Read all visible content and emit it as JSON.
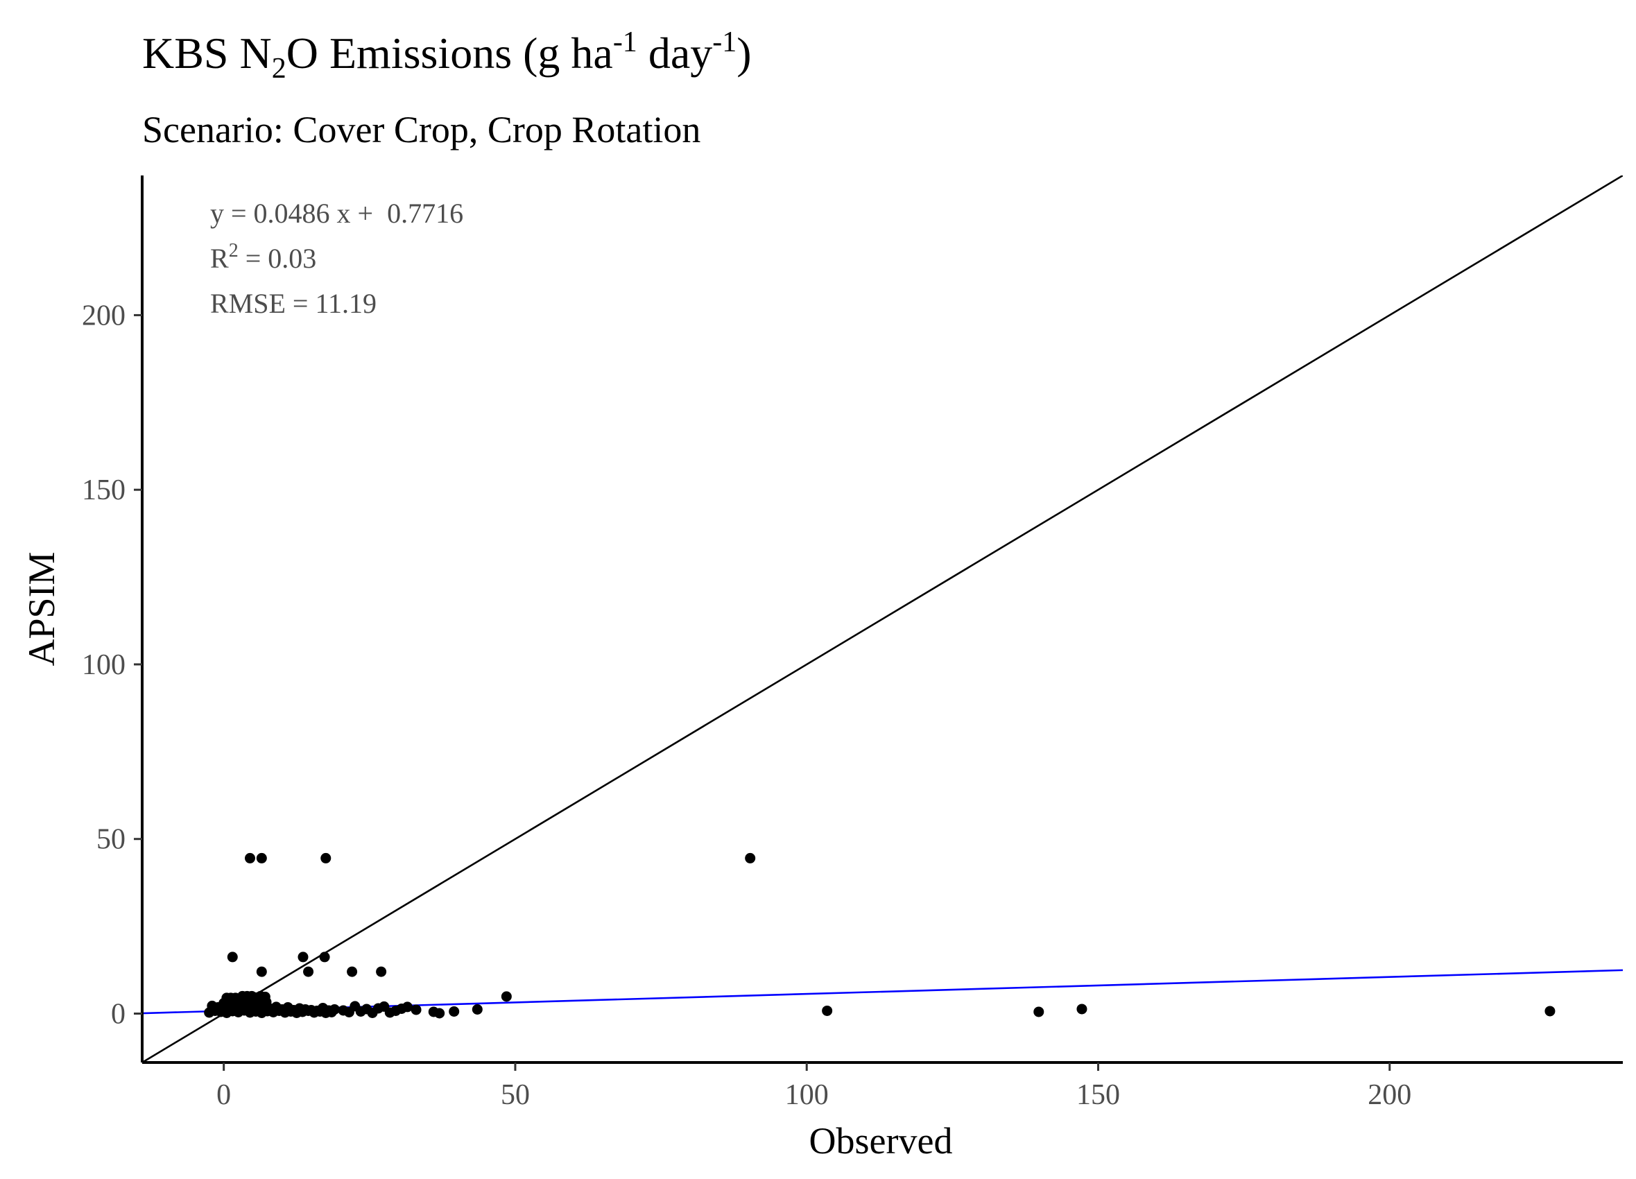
{
  "chart_data": {
    "type": "scatter",
    "title": {
      "text": "KBS N2O Emissions (g ha-1 day-1)",
      "parts": [
        {
          "text": "KBS N"
        },
        {
          "text": "2",
          "style": "sub"
        },
        {
          "text": "O Emissions (g ha"
        },
        {
          "text": "-1",
          "style": "sup"
        },
        {
          "text": " day"
        },
        {
          "text": "-1",
          "style": "sup"
        },
        {
          "text": ")"
        }
      ]
    },
    "subtitle": "Scenario: Cover Crop, Crop Rotation",
    "xlabel": "Observed",
    "ylabel": "APSIM",
    "xlim": [
      -14,
      240
    ],
    "ylim": [
      -14,
      240
    ],
    "x_ticks": [
      0,
      50,
      100,
      150,
      200
    ],
    "y_ticks": [
      0,
      50,
      100,
      150,
      200
    ],
    "grid": false,
    "annotations": {
      "equation": "y = 0.0486 x +  0.7716",
      "r2_base": "R",
      "r2_exp": "2",
      "r2_rest": " = 0.03",
      "rmse": "RMSE = 11.19"
    },
    "lines": [
      {
        "kind": "one-to-one",
        "slope": 1,
        "intercept": 0,
        "color": "#000000"
      },
      {
        "kind": "regression",
        "slope": 0.0486,
        "intercept": 0.7716,
        "color": "#0000ff"
      }
    ],
    "point_color": "#000000",
    "points": [
      [
        4.5,
        44.5
      ],
      [
        6.5,
        44.5
      ],
      [
        17.5,
        44.5
      ],
      [
        90.3,
        44.5
      ],
      [
        1.5,
        16.2
      ],
      [
        13.6,
        16.2
      ],
      [
        17.3,
        16.2
      ],
      [
        6.5,
        12.0
      ],
      [
        14.5,
        12.0
      ],
      [
        22,
        12.0
      ],
      [
        27,
        12.0
      ],
      [
        48.5,
        4.9
      ],
      [
        0.5,
        4.5
      ],
      [
        1.2,
        4.5
      ],
      [
        2.0,
        4.5
      ],
      [
        3.2,
        5.0
      ],
      [
        4.0,
        5.0
      ],
      [
        4.8,
        5.0
      ],
      [
        5.5,
        4.6
      ],
      [
        6.3,
        5.0
      ],
      [
        7.1,
        4.8
      ],
      [
        0.0,
        3.0
      ],
      [
        1.1,
        3.2
      ],
      [
        2.5,
        3.5
      ],
      [
        3.8,
        3.0
      ],
      [
        5.0,
        3.4
      ],
      [
        6.2,
        3.1
      ],
      [
        7.3,
        3.3
      ],
      [
        -2.0,
        2.2
      ],
      [
        -1.0,
        1.8
      ],
      [
        0.0,
        2.0
      ],
      [
        1.0,
        2.2
      ],
      [
        2.0,
        1.6
      ],
      [
        3.0,
        2.1
      ],
      [
        4.0,
        1.5
      ],
      [
        5.0,
        2.0
      ],
      [
        6.0,
        1.7
      ],
      [
        7.0,
        2.2
      ],
      [
        8.0,
        1.4
      ],
      [
        9.0,
        1.9
      ],
      [
        10.0,
        1.2
      ],
      [
        11.0,
        1.8
      ],
      [
        12.0,
        1.0
      ],
      [
        13.0,
        1.5
      ],
      [
        14.0,
        1.2
      ],
      [
        15.0,
        1.0
      ],
      [
        16.0,
        0.8
      ],
      [
        17.0,
        1.6
      ],
      [
        18.0,
        0.9
      ],
      [
        19.0,
        1.2
      ],
      [
        -2.5,
        0.3
      ],
      [
        -1.5,
        0.8
      ],
      [
        -0.5,
        0.5
      ],
      [
        0.5,
        0.2
      ],
      [
        1.5,
        0.7
      ],
      [
        2.5,
        0.4
      ],
      [
        3.5,
        0.9
      ],
      [
        4.5,
        0.3
      ],
      [
        5.5,
        0.6
      ],
      [
        6.5,
        0.2
      ],
      [
        7.5,
        0.7
      ],
      [
        8.5,
        0.4
      ],
      [
        9.5,
        0.8
      ],
      [
        10.5,
        0.3
      ],
      [
        11.5,
        0.6
      ],
      [
        12.5,
        0.2
      ],
      [
        13.5,
        0.5
      ],
      [
        14.5,
        0.8
      ],
      [
        15.5,
        0.3
      ],
      [
        16.5,
        0.6
      ],
      [
        17.5,
        0.2
      ],
      [
        18.5,
        0.4
      ],
      [
        20.5,
        0.9
      ],
      [
        21.5,
        0.4
      ],
      [
        22.5,
        2.1
      ],
      [
        23.5,
        0.6
      ],
      [
        24.5,
        1.3
      ],
      [
        25.5,
        0.2
      ],
      [
        26.5,
        1.5
      ],
      [
        27.5,
        2.0
      ],
      [
        28.5,
        0.3
      ],
      [
        29.5,
        0.8
      ],
      [
        30.5,
        1.4
      ],
      [
        31.5,
        1.9
      ],
      [
        33.0,
        1.1
      ],
      [
        36.0,
        0.5
      ],
      [
        37.0,
        0.1
      ],
      [
        39.5,
        0.6
      ],
      [
        43.5,
        1.2
      ],
      [
        103.5,
        0.8
      ],
      [
        139.8,
        0.5
      ],
      [
        147.2,
        1.3
      ],
      [
        227.5,
        0.7
      ]
    ]
  }
}
